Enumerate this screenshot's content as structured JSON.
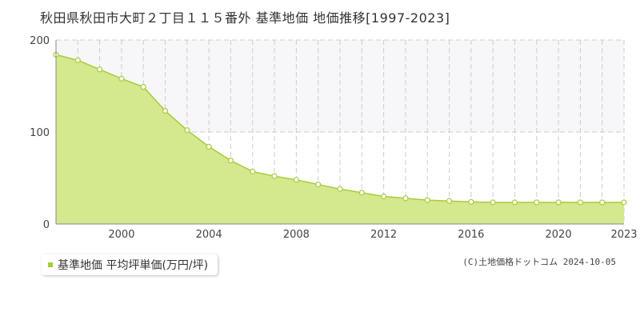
{
  "title": "秋田県秋田市大町２丁目１１５番外 基準地価 地価推移[1997-2023]",
  "legend_label": "基準地価 平均坪単価(万円/坪)",
  "copyright": "(C)土地価格ドットコム 2024-10-05",
  "colors": {
    "fill": "#d4e88e",
    "line": "#a6cc3a",
    "marker_fill": "#ffffff",
    "marker_stroke": "#a6cc3a",
    "legend_swatch": "#a6cc3a",
    "band": "#f7f7fa",
    "grid": "#cccccc"
  },
  "chart_data": {
    "type": "area",
    "x": [
      1997,
      1998,
      1999,
      2000,
      2001,
      2002,
      2003,
      2004,
      2005,
      2006,
      2007,
      2008,
      2009,
      2010,
      2011,
      2012,
      2013,
      2014,
      2015,
      2016,
      2017,
      2018,
      2019,
      2020,
      2021,
      2022,
      2023
    ],
    "series": [
      {
        "name": "基準地価 平均坪単価(万円/坪)",
        "values": [
          184,
          178,
          168,
          158,
          149,
          123,
          102,
          84,
          69,
          57,
          52,
          48,
          43,
          38,
          34,
          30,
          28,
          26,
          25,
          24,
          23.5,
          23.5,
          23.5,
          23.5,
          23.5,
          23.5,
          23.5
        ]
      }
    ],
    "xlim": [
      1997,
      2023
    ],
    "ylim": [
      0,
      200
    ],
    "yticks": [
      0,
      100,
      200
    ],
    "xticks": [
      2000,
      2004,
      2008,
      2012,
      2016,
      2020,
      2023
    ],
    "grid": true
  }
}
